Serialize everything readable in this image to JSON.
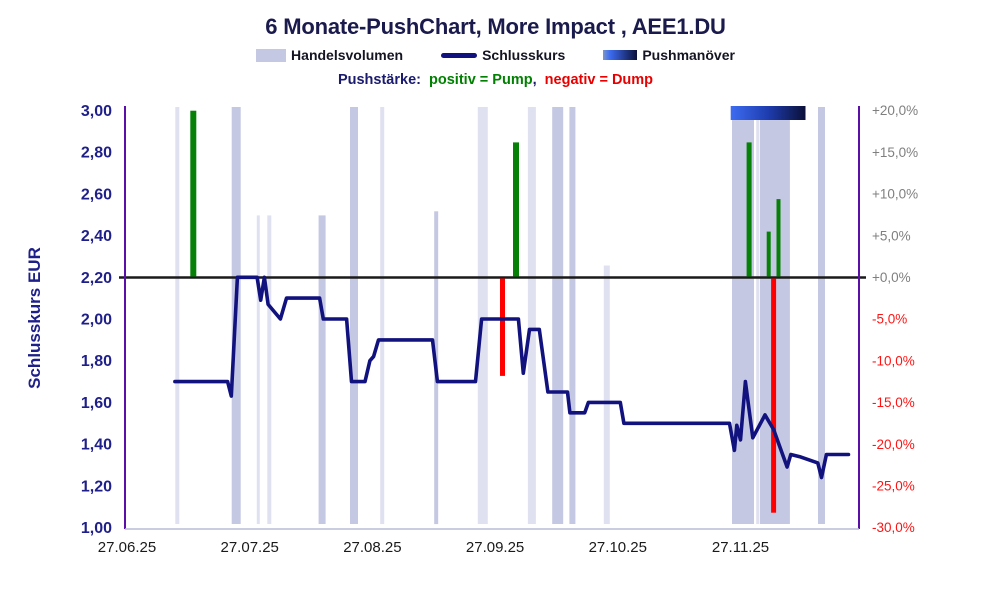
{
  "title": "6 Monate-PushChart, More Impact , AEE1.DU",
  "legend": [
    {
      "label": "Handelsvolumen",
      "swatch": "volume-swatch"
    },
    {
      "label": "Schlusskurs",
      "swatch": "line-swatch"
    },
    {
      "label": "Pushmanöver",
      "swatch": "push-gradient-swatch"
    }
  ],
  "subtitle": {
    "prefix": "Pushstärke:",
    "pump": "positiv = Pump",
    "separator": ",",
    "dump": "negativ = Dump"
  },
  "colors": {
    "title_text": "#1a1a4d",
    "close_line": "#12127f",
    "volume_bar": "#c5c8e3",
    "pump_bar": "#078007",
    "dump_bar": "#ff0000",
    "zero_line": "#1a1a1a",
    "axis_line_purple": "#5a0fa8",
    "x_axis_line": "#b9bcd6",
    "right_tick_positive": "#7f7f7f",
    "right_tick_negative": "#ff1414",
    "left_tick": "#1f1f8a",
    "push_period_gradient": [
      "#3d6cf2",
      "#1e3cae",
      "#0b1038"
    ]
  },
  "chart_data": {
    "type": "line",
    "title": "6 Monate-PushChart, More Impact , AEE1.DU",
    "x_axis": {
      "tick_labels": [
        "27.06.25",
        "27.07.25",
        "27.08.25",
        "27.09.25",
        "27.10.25",
        "27.11.25"
      ],
      "unit_months": true
    },
    "y_left": {
      "title": "Schlusskurs EUR",
      "range": [
        1.0,
        3.0
      ],
      "ticks": [
        {
          "label": "3,00",
          "value": 3.0
        },
        {
          "label": "2,80",
          "value": 2.8
        },
        {
          "label": "2,60",
          "value": 2.6
        },
        {
          "label": "2,40",
          "value": 2.4
        },
        {
          "label": "2,20",
          "value": 2.2
        },
        {
          "label": "2,00",
          "value": 2.0
        },
        {
          "label": "1,80",
          "value": 1.8
        },
        {
          "label": "1,60",
          "value": 1.6
        },
        {
          "label": "1,40",
          "value": 1.4
        },
        {
          "label": "1,20",
          "value": 1.2
        },
        {
          "label": "1,00",
          "value": 1.0
        }
      ]
    },
    "y_right": {
      "range": [
        -30,
        20
      ],
      "zero_at_eur": 2.2,
      "ticks": [
        {
          "label": "+20,0%",
          "value": 20
        },
        {
          "label": "+15,0%",
          "value": 15
        },
        {
          "label": "+10,0%",
          "value": 10
        },
        {
          "label": "+5,0%",
          "value": 5
        },
        {
          "label": "+0,0%",
          "value": 0
        },
        {
          "label": "-5,0%",
          "value": -5
        },
        {
          "label": "-10,0%",
          "value": -10
        },
        {
          "label": "-15,0%",
          "value": -15
        },
        {
          "label": "-20,0%",
          "value": -20
        },
        {
          "label": "-25,0%",
          "value": -25
        },
        {
          "label": "-30,0%",
          "value": -30
        }
      ]
    },
    "close_line": {
      "name": "Schlusskurs",
      "points_month_eur": [
        [
          0.39,
          1.7
        ],
        [
          0.82,
          1.7
        ],
        [
          0.85,
          1.63
        ],
        [
          0.9,
          2.2
        ],
        [
          1.06,
          2.2
        ],
        [
          1.09,
          2.09
        ],
        [
          1.12,
          2.2
        ],
        [
          1.15,
          2.07
        ],
        [
          1.25,
          2.0
        ],
        [
          1.3,
          2.1
        ],
        [
          1.57,
          2.1
        ],
        [
          1.6,
          2.0
        ],
        [
          1.79,
          2.0
        ],
        [
          1.83,
          1.7
        ],
        [
          1.94,
          1.7
        ],
        [
          1.98,
          1.8
        ],
        [
          2.01,
          1.82
        ],
        [
          2.05,
          1.9
        ],
        [
          2.49,
          1.9
        ],
        [
          2.53,
          1.7
        ],
        [
          2.84,
          1.7
        ],
        [
          2.89,
          2.0
        ],
        [
          3.19,
          2.0
        ],
        [
          3.23,
          1.74
        ],
        [
          3.28,
          1.95
        ],
        [
          3.36,
          1.95
        ],
        [
          3.43,
          1.65
        ],
        [
          3.59,
          1.65
        ],
        [
          3.61,
          1.55
        ],
        [
          3.73,
          1.55
        ],
        [
          3.76,
          1.6
        ],
        [
          4.02,
          1.6
        ],
        [
          4.05,
          1.5
        ],
        [
          4.91,
          1.5
        ],
        [
          4.95,
          1.37
        ],
        [
          4.97,
          1.49
        ],
        [
          5.0,
          1.42
        ],
        [
          5.04,
          1.7
        ],
        [
          5.1,
          1.43
        ],
        [
          5.2,
          1.54
        ],
        [
          5.27,
          1.47
        ],
        [
          5.38,
          1.29
        ],
        [
          5.41,
          1.35
        ],
        [
          5.48,
          1.34
        ],
        [
          5.58,
          1.32
        ],
        [
          5.63,
          1.31
        ],
        [
          5.66,
          1.24
        ],
        [
          5.7,
          1.35
        ],
        [
          5.88,
          1.35
        ]
      ]
    },
    "volume_bars": {
      "name": "Handelsvolumen",
      "bars": [
        {
          "m": 0.41,
          "w": 4,
          "h": 1.0,
          "faint": true
        },
        {
          "m": 0.89,
          "w": 9,
          "h": 1.0,
          "faint": false
        },
        {
          "m": 1.07,
          "w": 3,
          "h": 0.74,
          "faint": true
        },
        {
          "m": 1.16,
          "w": 4,
          "h": 0.74,
          "faint": true
        },
        {
          "m": 1.59,
          "w": 7,
          "h": 0.74,
          "faint": false
        },
        {
          "m": 1.85,
          "w": 8,
          "h": 1.0,
          "faint": false
        },
        {
          "m": 2.08,
          "w": 4,
          "h": 1.0,
          "faint": true
        },
        {
          "m": 2.52,
          "w": 4,
          "h": 0.75,
          "faint": false
        },
        {
          "m": 2.9,
          "w": 10,
          "h": 1.0,
          "faint": true
        },
        {
          "m": 3.3,
          "w": 8,
          "h": 1.0,
          "faint": true
        },
        {
          "m": 3.51,
          "w": 11,
          "h": 1.0,
          "faint": false
        },
        {
          "m": 3.63,
          "w": 6,
          "h": 1.0,
          "faint": false
        },
        {
          "m": 3.91,
          "w": 6,
          "h": 0.62,
          "faint": true
        },
        {
          "m": 5.02,
          "w": 22,
          "h": 1.0,
          "faint": false
        },
        {
          "m": 5.14,
          "w": 3,
          "h": 1.0,
          "faint": true
        },
        {
          "m": 5.28,
          "w": 30,
          "h": 1.0,
          "faint": false
        },
        {
          "m": 5.66,
          "w": 7,
          "h": 1.0,
          "faint": false
        }
      ]
    },
    "push_bars": {
      "pump": [
        {
          "m": 0.54,
          "pct": 20.0,
          "w": 6
        },
        {
          "m": 3.17,
          "pct": 16.2,
          "w": 6
        },
        {
          "m": 5.07,
          "pct": 16.2,
          "w": 5
        },
        {
          "m": 5.23,
          "pct": 5.5,
          "w": 4
        },
        {
          "m": 5.31,
          "pct": 9.4,
          "w": 4
        }
      ],
      "dump": [
        {
          "m": 3.06,
          "pct": -11.8,
          "w": 5
        },
        {
          "m": 5.27,
          "pct": -28.2,
          "w": 5
        }
      ]
    },
    "push_period": {
      "name": "Pushmanöver",
      "x0_month": 4.92,
      "x1_month": 5.53
    },
    "legend_position": "top",
    "grid": false
  }
}
